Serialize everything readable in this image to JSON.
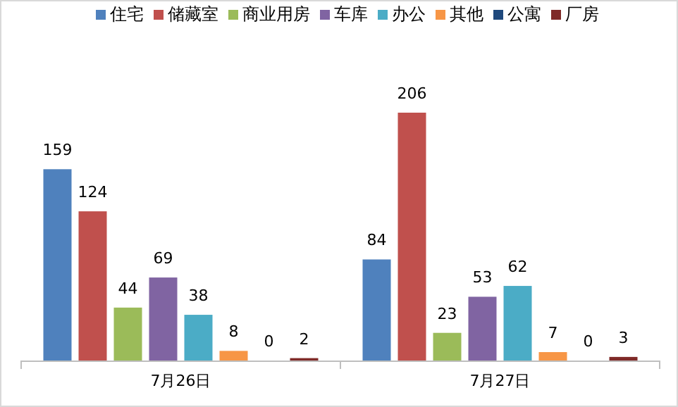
{
  "chart_data": {
    "type": "bar",
    "categories": [
      "7月26日",
      "7月27日"
    ],
    "series": [
      {
        "name": "住宅",
        "color": "#4f81bd",
        "values": [
          159,
          84
        ]
      },
      {
        "name": "储藏室",
        "color": "#c0504d",
        "values": [
          124,
          206
        ]
      },
      {
        "name": "商业用房",
        "color": "#9bbb59",
        "values": [
          44,
          23
        ]
      },
      {
        "name": "车库",
        "color": "#8064a2",
        "values": [
          69,
          53
        ]
      },
      {
        "name": "办公",
        "color": "#4bacc6",
        "values": [
          38,
          62
        ]
      },
      {
        "name": "其他",
        "color": "#f79646",
        "values": [
          8,
          7
        ]
      },
      {
        "name": "公寓",
        "color": "#1f497d",
        "values": [
          0,
          0
        ]
      },
      {
        "name": "厂房",
        "color": "#7f2a28",
        "values": [
          2,
          3
        ]
      }
    ],
    "data_labels": true,
    "legend": "top"
  }
}
